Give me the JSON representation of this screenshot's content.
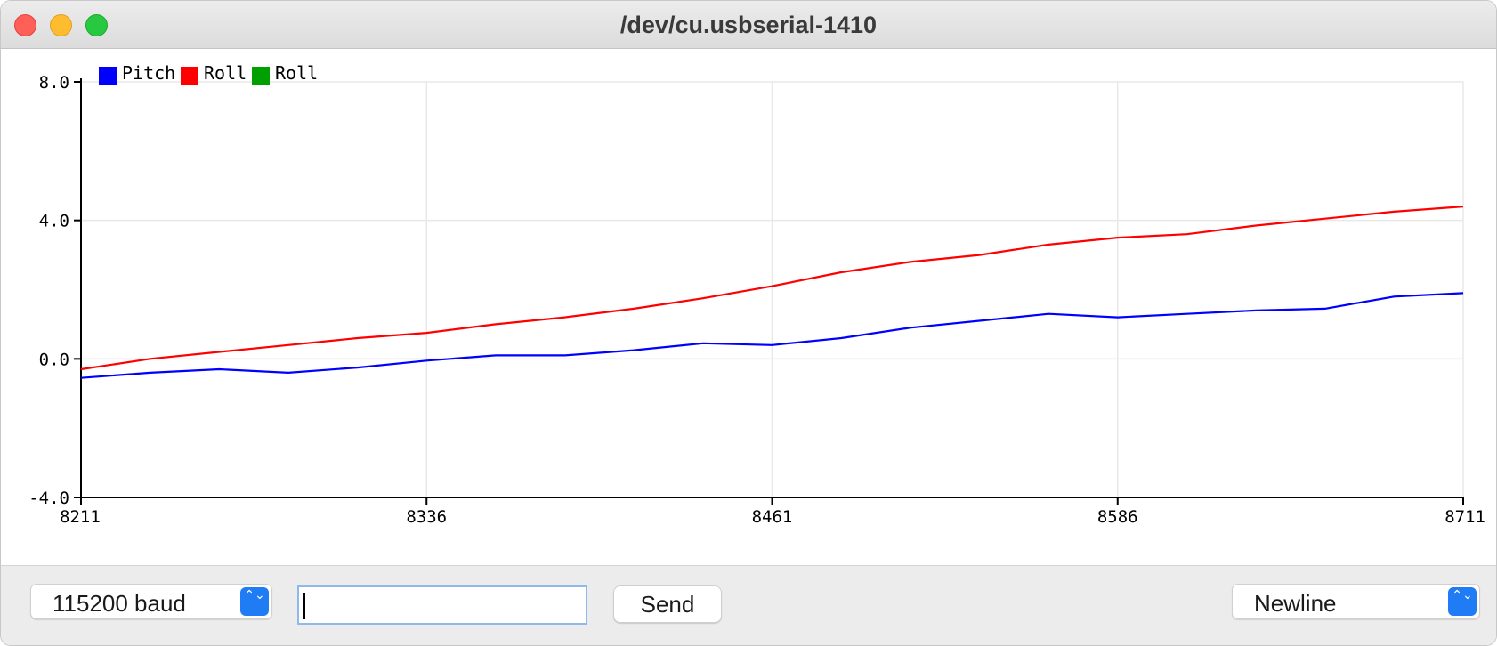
{
  "window": {
    "title": "/dev/cu.usbserial-1410"
  },
  "controls": {
    "baud_select": {
      "value": "115200 baud"
    },
    "message_input": {
      "value": "",
      "placeholder": ""
    },
    "send_label": "Send",
    "line_ending_select": {
      "value": "Newline"
    },
    "stepper_glyph": "⌃⌄"
  },
  "colors": {
    "pitch": "#0000ff",
    "roll": "#ff0000",
    "roll2": "#00a000",
    "grid": "#e8e8e8",
    "axis": "#000000",
    "accent": "#1f7cf4"
  },
  "chart_data": {
    "type": "line",
    "title": "",
    "xlabel": "",
    "ylabel": "",
    "xlim": [
      8211,
      8711
    ],
    "ylim": [
      -4.0,
      8.0
    ],
    "x_ticks": [
      8211,
      8336,
      8461,
      8586,
      8711
    ],
    "y_ticks": [
      "-4.0",
      "0.0",
      "4.0",
      "8.0"
    ],
    "y_tick_values": [
      -4.0,
      0.0,
      4.0,
      8.0
    ],
    "grid": true,
    "legend_position": "top-left",
    "series": [
      {
        "name": "Pitch",
        "color": "#0000ff",
        "x": [
          8211,
          8236,
          8261,
          8286,
          8311,
          8336,
          8361,
          8386,
          8411,
          8436,
          8461,
          8486,
          8511,
          8536,
          8561,
          8586,
          8611,
          8636,
          8661,
          8686,
          8711
        ],
        "y": [
          -0.55,
          -0.4,
          -0.3,
          -0.4,
          -0.25,
          -0.05,
          0.1,
          0.1,
          0.25,
          0.45,
          0.4,
          0.6,
          0.9,
          1.1,
          1.3,
          1.2,
          1.3,
          1.4,
          1.45,
          1.8,
          1.9
        ]
      },
      {
        "name": "Roll",
        "color": "#ff0000",
        "x": [
          8211,
          8236,
          8261,
          8286,
          8311,
          8336,
          8361,
          8386,
          8411,
          8436,
          8461,
          8486,
          8511,
          8536,
          8561,
          8586,
          8611,
          8636,
          8661,
          8686,
          8711
        ],
        "y": [
          -0.3,
          0.0,
          0.2,
          0.4,
          0.6,
          0.75,
          1.0,
          1.2,
          1.45,
          1.75,
          2.1,
          2.5,
          2.8,
          3.0,
          3.3,
          3.5,
          3.6,
          3.85,
          4.05,
          4.25,
          4.4
        ]
      },
      {
        "name": "Roll",
        "color": "#00a000",
        "x": [],
        "y": []
      }
    ]
  }
}
